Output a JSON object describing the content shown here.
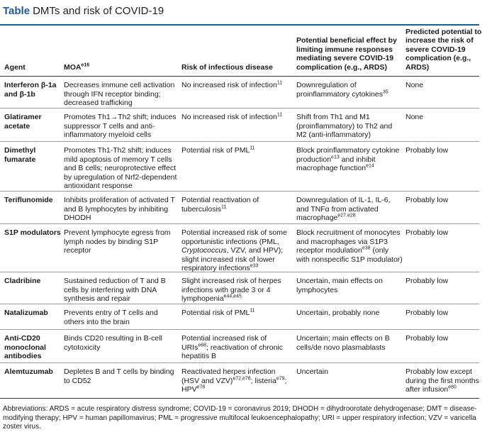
{
  "table": {
    "label": "Table",
    "title": "DMTs and risk of COVID-19",
    "headers": {
      "agent": "Agent",
      "moa": "MOA",
      "moa_ref": "e16",
      "risk": "Risk of infectious disease",
      "benefit": "Potential beneficial effect by limiting immune responses mediating severe COVID-19 complication (e.g., ARDS)",
      "predicted": "Predicted potential to increase the risk of severe COVID-19 complication (e.g., ARDS)"
    },
    "rows": [
      {
        "agent": "Interferon β-1a and β-1b",
        "moa": "Decreases immune cell activation through IFN receptor binding; decreased trafficking",
        "risk": "No increased risk of infection",
        "risk_ref": "11",
        "benefit": "Downregulation of proinflammatory cytokines",
        "benefit_ref": "35",
        "predicted": "None"
      },
      {
        "agent": "Glatiramer acetate",
        "moa": "Promotes Th1→Th2 shift; induces suppressor T cells and anti-inflammatory myeloid cells",
        "risk": "No increased risk of infection",
        "risk_ref": "11",
        "benefit": "Shift from Th1 and M1 (proinflammatory) to Th2 and M2 (anti-inflammatory)",
        "predicted": "None"
      },
      {
        "agent": "Dimethyl fumarate",
        "moa": "Promotes Th1-Th2 shift; induces mild apoptosis of memory T cells and B cells; neuroprotective effect by upregulation of Nrf2-dependent antioxidant response",
        "risk": "Potential risk of PML",
        "risk_ref": "11",
        "benefit_a": "Block proinflammatory cytokine production",
        "benefit_a_ref": "e13",
        "benefit_b": " and inhibit macrophage function",
        "benefit_b_ref": "e14",
        "predicted": "Probably low"
      },
      {
        "agent": "Teriflunomide",
        "moa": "Inhibits proliferation of activated T and B lymphocytes by inhibiting DHODH",
        "risk": "Potential reactivation of tuberculosis",
        "risk_ref": "11",
        "benefit": "Downregulation of IL-1, IL-6, and TNFα from activated macrophage",
        "benefit_ref": "e27,e28",
        "predicted": "Probably low"
      },
      {
        "agent": "S1P modulators",
        "moa": "Prevent lymphocyte egress from lymph nodes by binding S1P receptor",
        "risk_a": "Potential increased risk of some opportunistic infections (PML, ",
        "risk_italic": "Cryptococcus",
        "risk_b": ", VZV, and HPV); slight increased risk of lower respiratory infections",
        "risk_ref": "e33",
        "benefit_a": "Block recruitment of monocytes and macrophages via S1P3 receptor modulation",
        "benefit_ref": "e38",
        "benefit_b": " (only with nonspecific S1P modulator)",
        "predicted": "Probably low"
      },
      {
        "agent": "Cladribine",
        "moa": "Sustained reduction of T and B cells by interfering with DNA synthesis and repair",
        "risk": "Slight increased risk of herpes infections with grade 3 or 4 lymphopenia",
        "risk_ref": "e44,e45",
        "benefit": "Uncertain, main effects on lymphocytes",
        "predicted": "Probably low"
      },
      {
        "agent": "Natalizumab",
        "moa": "Prevents entry of T cells and others into the brain",
        "risk": "Potential risk of PML",
        "risk_ref": "11",
        "benefit": "Uncertain, probably none",
        "predicted": "Probably low"
      },
      {
        "agent": "Anti-CD20 monoclonal antibodies",
        "moa": "Binds CD20 resulting in B-cell cytotoxicity",
        "risk_a": "Potential increased risk of URIs",
        "risk_a_ref": "e68",
        "risk_b": "; reactivation of chronic hepatitis B",
        "benefit": "Uncertain; main effects on B cells/de novo plasmablasts",
        "predicted": "Probably low"
      },
      {
        "agent": "Alemtuzumab",
        "moa": "Depletes B and T cells by binding to CD52",
        "risk_a": "Reactivated herpes infection (HSV and VZV)",
        "risk_a_ref": "e72,e78",
        "risk_b": "; listeria",
        "risk_b_ref": "e79",
        "risk_c": "; HPV",
        "risk_c_ref": "e78",
        "benefit": "Uncertain",
        "predicted": "Probably low except during the first months after infusion",
        "predicted_ref": "e80"
      }
    ],
    "footnote": "Abbreviations: ARDS = acute respiratory distress syndrome; COVID-19 = coronavirus 2019; DHODH = dihydroorotate dehydrogenase; DMT = disease-modifying therapy; HPV = human papillomavirus; PML = progressive multifocal leukoencephalopathy; URI = upper respiratory infection; VZV = varicella zoster virus."
  }
}
